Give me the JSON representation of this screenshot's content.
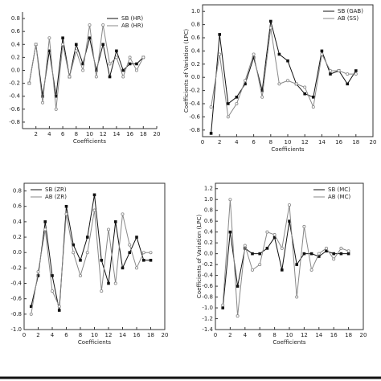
{
  "chart_data": [
    {
      "type": "line",
      "x_label": "Coefficients",
      "legend": "top-right",
      "x": [
        1,
        2,
        3,
        4,
        5,
        6,
        7,
        8,
        9,
        10,
        11,
        12,
        13,
        14,
        15,
        16,
        17,
        18
      ],
      "xlim": [
        0,
        20
      ],
      "xticks": [
        2,
        4,
        6,
        8,
        10,
        12,
        14,
        16,
        18,
        20
      ],
      "ylim": [
        -0.9,
        0.9
      ],
      "yticks": [
        0.8,
        0.6,
        0.4,
        0.2,
        {
          "value": 0,
          "label": "0.0"
        },
        -0.2,
        -0.4,
        -0.6,
        -0.8
      ],
      "series": [
        {
          "name": "SB (HR)",
          "color": "#111",
          "values": [
            -0.2,
            0.4,
            -0.4,
            0.3,
            -0.4,
            0.5,
            -0.1,
            0.4,
            0.1,
            0.5,
            0.0,
            0.4,
            -0.1,
            0.3,
            0.0,
            0.1,
            0.1,
            0.2
          ]
        },
        {
          "name": "AB (HR)",
          "color": "#888",
          "values": [
            -0.2,
            0.4,
            -0.5,
            0.5,
            -0.6,
            0.4,
            -0.1,
            0.3,
            0.0,
            0.7,
            -0.1,
            0.7,
            0.1,
            0.2,
            -0.1,
            0.2,
            0.0,
            0.2
          ]
        }
      ]
    },
    {
      "type": "line",
      "x_label": "Coefficients",
      "y_label": "Coefficients of Variation (LPC)",
      "legend": "top-right",
      "x": [
        1,
        2,
        3,
        4,
        5,
        6,
        7,
        8,
        9,
        10,
        11,
        12,
        13,
        14,
        15,
        16,
        17,
        18
      ],
      "xlim": [
        0,
        20
      ],
      "xticks": [
        0,
        2,
        4,
        6,
        8,
        10,
        12,
        14,
        16,
        18,
        20
      ],
      "ylim": [
        -0.9,
        1.1
      ],
      "yticks": [
        {
          "value": 1,
          "label": "1.0"
        },
        0.8,
        0.6,
        0.4,
        0.2,
        {
          "value": 0,
          "label": "0.0"
        },
        -0.2,
        -0.4,
        -0.6,
        -0.8
      ],
      "series": [
        {
          "name": "SB (GAB)",
          "color": "#111",
          "values": [
            -0.85,
            0.65,
            -0.4,
            -0.3,
            -0.1,
            0.3,
            -0.2,
            0.85,
            0.35,
            0.25,
            -0.1,
            -0.25,
            -0.3,
            0.4,
            0.05,
            0.1,
            -0.1,
            0.1
          ]
        },
        {
          "name": "AB (SS)",
          "color": "#888",
          "values": [
            -0.45,
            0.35,
            -0.6,
            -0.4,
            -0.05,
            0.35,
            -0.3,
            0.75,
            -0.1,
            -0.05,
            -0.1,
            -0.15,
            -0.45,
            0.35,
            0.1,
            0.1,
            0.05,
            0.05
          ]
        }
      ]
    },
    {
      "type": "line",
      "x_label": "Coefficients",
      "legend": "top-left",
      "x": [
        1,
        2,
        3,
        4,
        5,
        6,
        7,
        8,
        9,
        10,
        11,
        12,
        13,
        14,
        15,
        16,
        17,
        18
      ],
      "xlim": [
        0,
        20
      ],
      "xticks": [
        0,
        2,
        4,
        6,
        8,
        10,
        12,
        14,
        16,
        18,
        20
      ],
      "ylim": [
        -1,
        0.9
      ],
      "yticks": [
        0.8,
        0.6,
        0.4,
        0.2,
        {
          "value": 0,
          "label": "0.0"
        },
        -0.2,
        -0.4,
        -0.6,
        -0.8,
        {
          "value": -1,
          "label": "-1.0"
        }
      ],
      "series": [
        {
          "name": "SB (ZR)",
          "color": "#111",
          "values": [
            -0.7,
            -0.3,
            0.4,
            -0.3,
            -0.75,
            0.6,
            0.1,
            -0.1,
            0.2,
            0.75,
            -0.1,
            -0.4,
            0.4,
            -0.2,
            0.0,
            0.2,
            -0.1,
            -0.1
          ]
        },
        {
          "name": "AB (ZR)",
          "color": "#888",
          "values": [
            -0.8,
            -0.25,
            0.3,
            -0.5,
            -0.7,
            0.5,
            0.0,
            -0.3,
            0.0,
            0.55,
            -0.5,
            0.3,
            -0.4,
            0.5,
            0.1,
            -0.2,
            0.0,
            0.0
          ]
        }
      ]
    },
    {
      "type": "line",
      "x_label": "Coefficients",
      "y_label": "Coefficients of Variation (LPC)",
      "legend": "top-right",
      "x": [
        1,
        2,
        3,
        4,
        5,
        6,
        7,
        8,
        9,
        10,
        11,
        12,
        13,
        14,
        15,
        16,
        17,
        18
      ],
      "xlim": [
        0,
        20
      ],
      "xticks": [
        0,
        2,
        4,
        6,
        8,
        10,
        12,
        14,
        16,
        18,
        20
      ],
      "ylim": [
        -1.4,
        1.3
      ],
      "yticks": [
        1.2,
        {
          "value": 1,
          "label": "1.0"
        },
        0.8,
        0.6,
        0.4,
        0.2,
        {
          "value": 0,
          "label": "0.0"
        },
        -0.2,
        -0.4,
        -0.6,
        -0.8,
        {
          "value": -1,
          "label": "-1.0"
        },
        -1.2,
        -1.4
      ],
      "series": [
        {
          "name": "SB (MC)",
          "color": "#111",
          "values": [
            -1.0,
            0.4,
            -0.6,
            0.1,
            0.0,
            0.0,
            0.1,
            0.3,
            -0.3,
            0.6,
            -0.2,
            0.0,
            0.0,
            -0.05,
            0.05,
            0.0,
            0.0,
            0.0
          ]
        },
        {
          "name": "AB (MC)",
          "color": "#888",
          "values": [
            -0.95,
            1.0,
            -1.15,
            0.15,
            -0.3,
            -0.2,
            0.4,
            0.35,
            0.1,
            0.9,
            -0.8,
            0.5,
            -0.3,
            0.0,
            0.1,
            -0.1,
            0.1,
            0.05
          ]
        }
      ]
    }
  ]
}
